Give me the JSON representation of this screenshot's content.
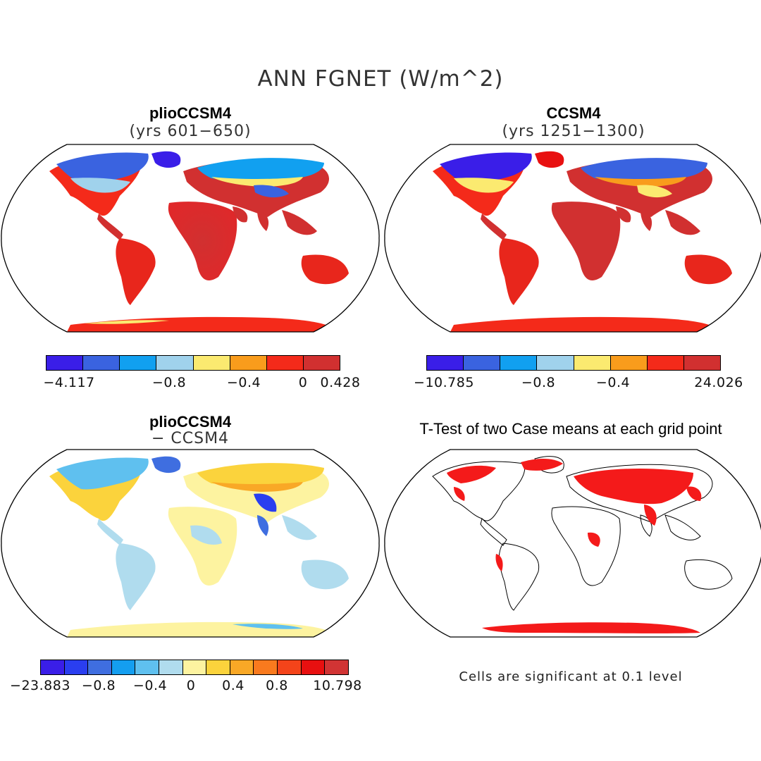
{
  "title": "ANN FGNET (W/m^2)",
  "panels": [
    {
      "title": "plioCCSM4",
      "subtitle": "(yrs 601−650)"
    },
    {
      "title": "CCSM4",
      "subtitle": "(yrs 1251−1300)"
    },
    {
      "title": "plioCCSM4",
      "subtitle": "− CCSM4"
    },
    {
      "title": "T-Test of two Case means at each grid point",
      "subtitle": ""
    }
  ],
  "colorbars": [
    {
      "colors": [
        "#3a1ee8",
        "#3a63e0",
        "#11a0f0",
        "#a0d2ec",
        "#fbea70",
        "#f99c1c",
        "#f42a1a",
        "#d13030"
      ],
      "labels": [
        "−4.117",
        "−0.8",
        "−0.4",
        "0",
        "0.428"
      ]
    },
    {
      "colors": [
        "#3a1ee8",
        "#3a63e0",
        "#11a0f0",
        "#a0d2ec",
        "#fbea70",
        "#f99c1c",
        "#f42a1a",
        "#d13030"
      ],
      "labels": [
        "−10.785",
        "−0.8",
        "−0.4",
        "24.026"
      ]
    },
    {
      "colors": [
        "#3a1ee8",
        "#2a3ef0",
        "#3f6ee0",
        "#149ef0",
        "#5fc0ef",
        "#b0dcee",
        "#fdf3a0",
        "#fbd33c",
        "#f9a826",
        "#f97a1e",
        "#f4441a",
        "#e81010",
        "#d13434"
      ],
      "labels": [
        "−23.883",
        "−0.8",
        "−0.4",
        "0",
        "0.4",
        "0.8",
        "10.798"
      ]
    }
  ],
  "note": "Cells are significant at 0.1 level"
}
